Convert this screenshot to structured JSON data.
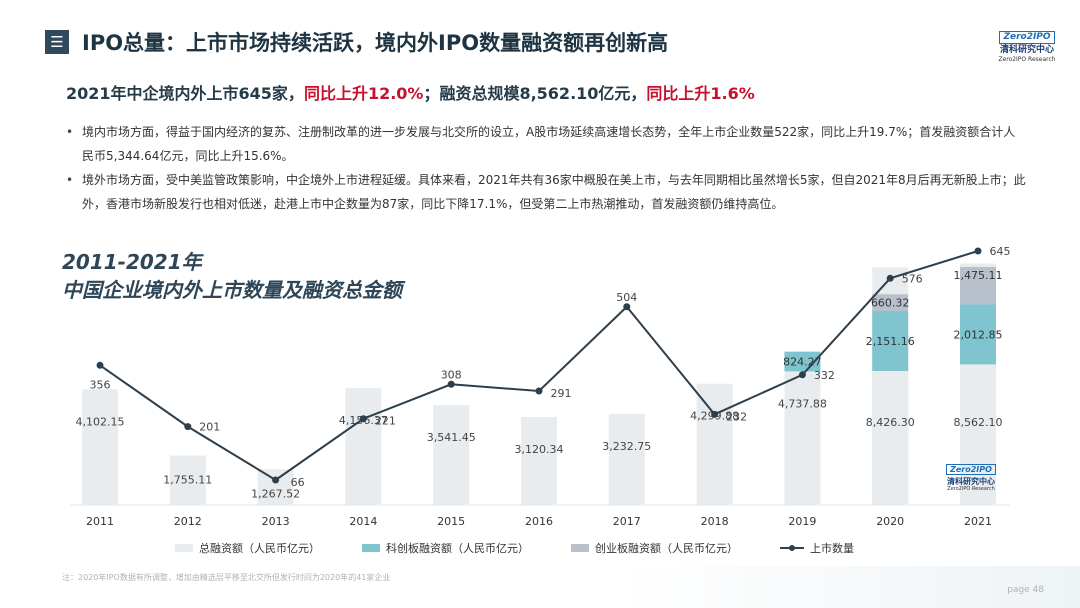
{
  "header": {
    "menu_icon": "menu-icon",
    "title": "IPO总量：上市市场持续活跃，境内外IPO数量融资额再创新高",
    "logo": {
      "mark": "Zero2IPO",
      "cn": "清科研究中心",
      "en": "Zero2IPO Research"
    }
  },
  "headline": {
    "part1": "2021年中企境内外上市645家，",
    "part2": "同比上升12.0%",
    "part3": "；融资总规模8,562.10亿元，",
    "part4": "同比上升1.6%"
  },
  "bullets": [
    "境内市场方面，得益于国内经济的复苏、注册制改革的进一步发展与北交所的设立，A股市场延续高速增长态势，全年上市企业数量522家，同比上升19.7%；首发融资额合计人民币5,344.64亿元，同比上升15.6%。",
    "境外市场方面，受中美监管政策影响，中企境外上市进程延缓。具体来看，2021年共有36家中概股在美上市，与去年同期相比虽然增长5家，但自2021年8月后再无新股上市；此外，香港市场新股发行也相对低迷，赴港上市中企数量为87家，同比下降17.1%，但受第二上市热潮推动，首发融资额仍维持高位。"
  ],
  "chart_title": {
    "line1": "2011-2021年",
    "line2": "中国企业境内外上市数量及融资总金额"
  },
  "chart_data": {
    "type": "bar",
    "categories": [
      "2011",
      "2012",
      "2013",
      "2014",
      "2015",
      "2016",
      "2017",
      "2018",
      "2019",
      "2020",
      "2021"
    ],
    "series": [
      {
        "name": "总融资额（人民币亿元）",
        "type": "bar",
        "color": "#e8ecef",
        "values": [
          4102.15,
          1755.11,
          1267.52,
          4156.37,
          3541.45,
          3120.34,
          3232.75,
          4299.88,
          4737.88,
          8426.3,
          8562.1
        ],
        "labels": [
          "4,102.15",
          "1,755.11",
          "1,267.52",
          "4,156.37",
          "3,541.45",
          "3,120.34",
          "3,232.75",
          "4,299.88",
          "4,737.88",
          "8,426.30",
          "8,562.10"
        ]
      },
      {
        "name": "科创板融资额（人民币亿元）",
        "type": "bar",
        "color": "#7fc4cf",
        "values": [
          null,
          null,
          null,
          null,
          null,
          null,
          null,
          null,
          824.27,
          2151.16,
          2012.85
        ],
        "labels": [
          "",
          "",
          "",
          "",
          "",
          "",
          "",
          "",
          "824.27",
          "2,151.16",
          "2,012.85"
        ]
      },
      {
        "name": "创业板融资额（人民币亿元）",
        "type": "bar",
        "color": "#b8c0cc",
        "values": [
          null,
          null,
          null,
          null,
          null,
          null,
          null,
          null,
          null,
          660.32,
          1475.11
        ],
        "labels": [
          "",
          "",
          "",
          "",
          "",
          "",
          "",
          "",
          "",
          "660.32",
          "1,475.11"
        ]
      },
      {
        "name": "上市数量",
        "type": "line",
        "color": "#2d3f4c",
        "values": [
          356,
          201,
          66,
          221,
          308,
          291,
          504,
          232,
          332,
          576,
          645
        ],
        "labels": [
          "356",
          "201",
          "66",
          "221",
          "308",
          "291",
          "504",
          "232",
          "332",
          "576",
          "645"
        ]
      }
    ]
  },
  "watermark": {
    "mark": "Zero2IPO",
    "cn": "清科研究中心",
    "en": "Zero2IPO Research"
  },
  "footnote": "注：2020年IPO数据有所调整，增加由精选层平移至北交所但发行时间为2020年的41家企业",
  "page": "page 48"
}
